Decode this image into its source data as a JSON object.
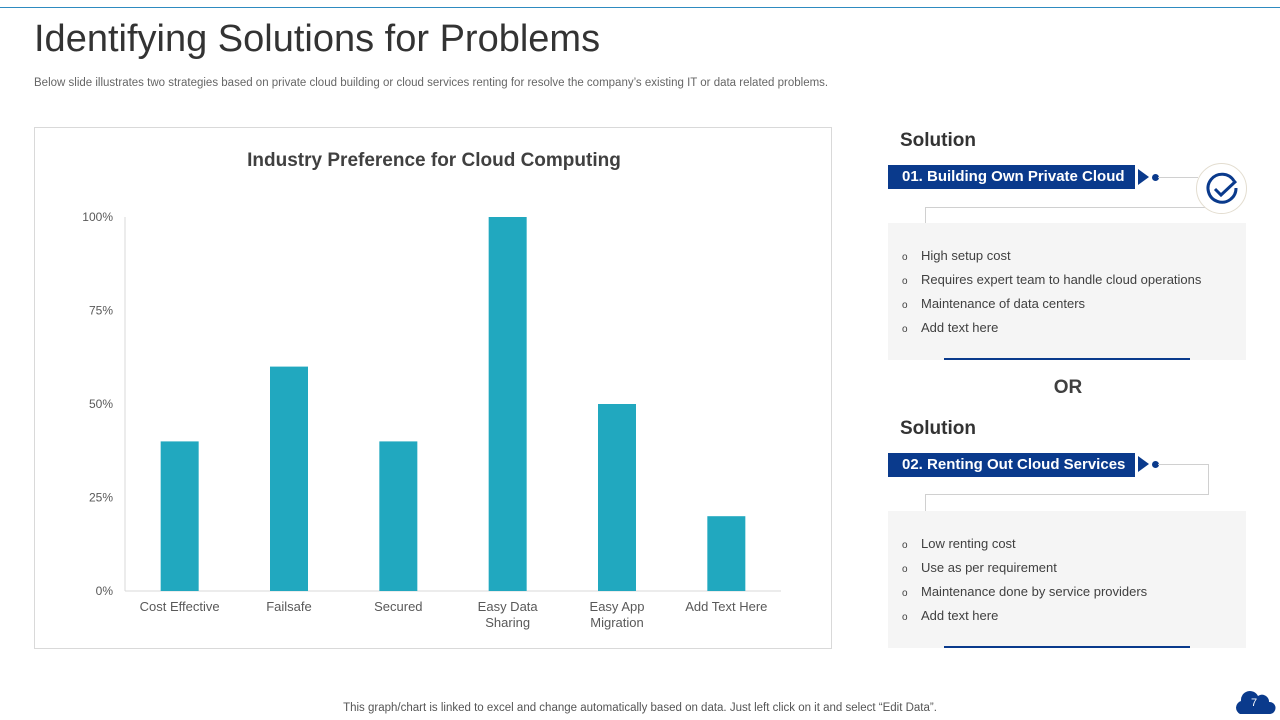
{
  "title": "Identifying Solutions for Problems",
  "subtitle": "Below slide illustrates two strategies based on private cloud building or cloud services renting for resolve the company’s existing IT or data related problems.",
  "chart_data": {
    "type": "bar",
    "title": "Industry Preference for Cloud Computing",
    "categories": [
      [
        "Cost Effective"
      ],
      [
        "Failsafe"
      ],
      [
        "Secured"
      ],
      [
        "Easy Data",
        "Sharing"
      ],
      [
        "Easy App",
        "Migration"
      ],
      [
        "Add Text Here"
      ]
    ],
    "values": [
      40,
      60,
      40,
      100,
      50,
      20
    ],
    "ylim": [
      0,
      100
    ],
    "yticks": [
      "0%",
      "25%",
      "50%",
      "75%",
      "100%"
    ],
    "bar_color": "#21a8bf",
    "grid": false
  },
  "solutions": [
    {
      "heading": "Solution",
      "label": "01. Building Own Private Cloud",
      "items": [
        "High setup cost",
        "Requires expert team to handle cloud operations",
        "Maintenance of data centers",
        "Add text here"
      ]
    },
    {
      "heading": "Solution",
      "label": "02. Renting Out Cloud Services",
      "items": [
        "Low renting cost",
        "Use as per requirement",
        "Maintenance done by service providers",
        "Add text here"
      ]
    }
  ],
  "or_label": "OR",
  "bullet": "o",
  "footer": "This graph/chart is linked to excel and change automatically based on data. Just left click on it and select “Edit Data”.",
  "page_number": "7",
  "accent": "#0a3a8c"
}
